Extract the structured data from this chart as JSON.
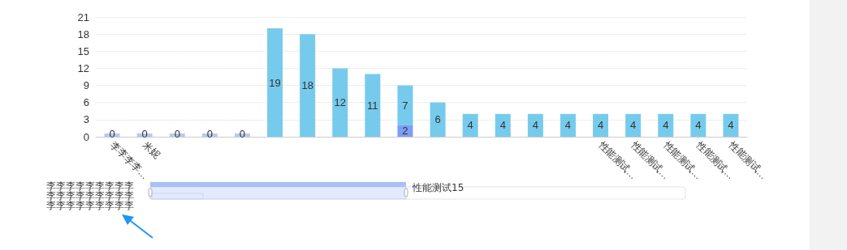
{
  "chart_data": {
    "type": "bar",
    "stacked": true,
    "data_labels": true,
    "grid": "y",
    "categories": [
      "李李李李…",
      "米妮",
      null,
      null,
      null,
      null,
      null,
      null,
      null,
      null,
      null,
      null,
      null,
      null,
      null,
      "性能测试…",
      "性能测试…",
      "性能测试…",
      "性能测试…",
      "性能测试…"
    ],
    "series": [
      {
        "color": "#7d9ef6",
        "colors": [
          "#b6c9f6",
          "#b6c9f6",
          "#b6c9f6",
          "#b6c9f6",
          "#b6c9f6",
          null,
          null,
          null,
          null,
          "#7d9ef6",
          null,
          null,
          null,
          null,
          null,
          null,
          null,
          null,
          null,
          null
        ],
        "values": [
          0,
          0,
          0,
          0,
          0,
          null,
          null,
          null,
          null,
          2,
          null,
          null,
          null,
          null,
          null,
          null,
          null,
          null,
          null,
          null
        ]
      },
      {
        "color": "#76cbec",
        "values": [
          null,
          null,
          null,
          null,
          null,
          19,
          18,
          12,
          11,
          7,
          6,
          4,
          4,
          4,
          4,
          4,
          4,
          4,
          4,
          4
        ]
      }
    ],
    "ylim": [
      0,
      21
    ],
    "yticks": [
      0,
      3,
      6,
      9,
      12,
      15,
      18,
      21
    ],
    "annotations": [
      "李李李李李李李李李李李李李李李李李李李李李李李李李李李",
      "性能测试15"
    ]
  }
}
